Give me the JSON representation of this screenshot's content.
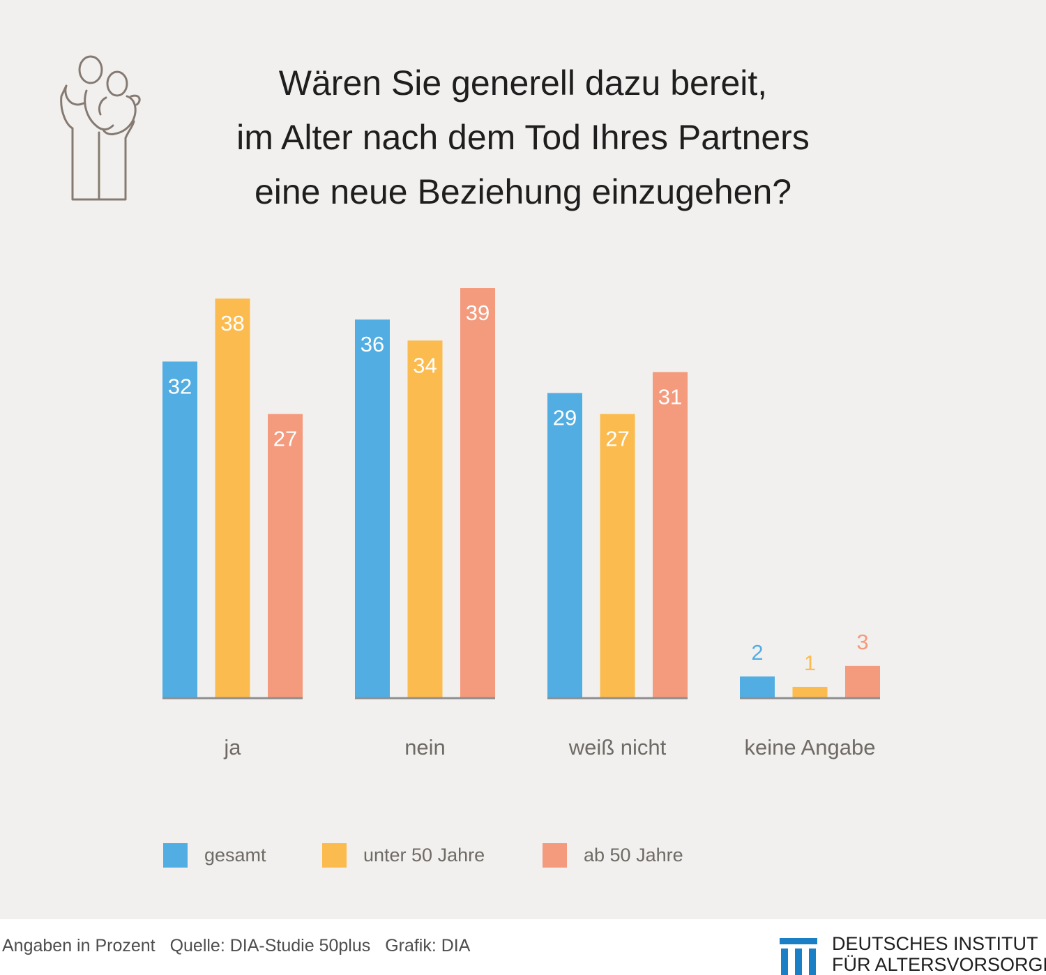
{
  "title_lines": [
    "Wären Sie generell dazu bereit,",
    "im Alter nach dem Tod Ihres Partners",
    "eine neue Beziehung einzugehen?"
  ],
  "colors": {
    "gesamt": "#52ade3",
    "unter_50": "#fbbb4e",
    "ab_50": "#f49a7d",
    "background": "#f2f0ee",
    "baseline": "#8f8f8f"
  },
  "chart_data": {
    "type": "bar",
    "categories": [
      "ja",
      "nein",
      "weiß nicht",
      "keine Angabe"
    ],
    "series": [
      {
        "name": "gesamt",
        "values": [
          32,
          36,
          29,
          2
        ]
      },
      {
        "name": "unter 50 Jahre",
        "values": [
          38,
          34,
          27,
          1
        ]
      },
      {
        "name": "ab 50 Jahre",
        "values": [
          27,
          39,
          31,
          3
        ]
      }
    ],
    "ylim": [
      0,
      40
    ],
    "grid": false,
    "legend": "bottom-left"
  },
  "legend": {
    "gesamt": "gesamt",
    "unter_50": "unter 50 Jahre",
    "ab_50": "ab 50 Jahre"
  },
  "footer": {
    "unit_note": "Angaben in Prozent",
    "source": "Quelle: DIA-Studie 50plus",
    "graphic": "Grafik: DIA"
  },
  "publisher": {
    "line1": "DEUTSCHES INSTITUT",
    "line2": "FÜR ALTERSVORSORGE"
  },
  "icons": {
    "header": "couple-embrace-icon",
    "publisher": "dia-columns-logo-icon"
  }
}
